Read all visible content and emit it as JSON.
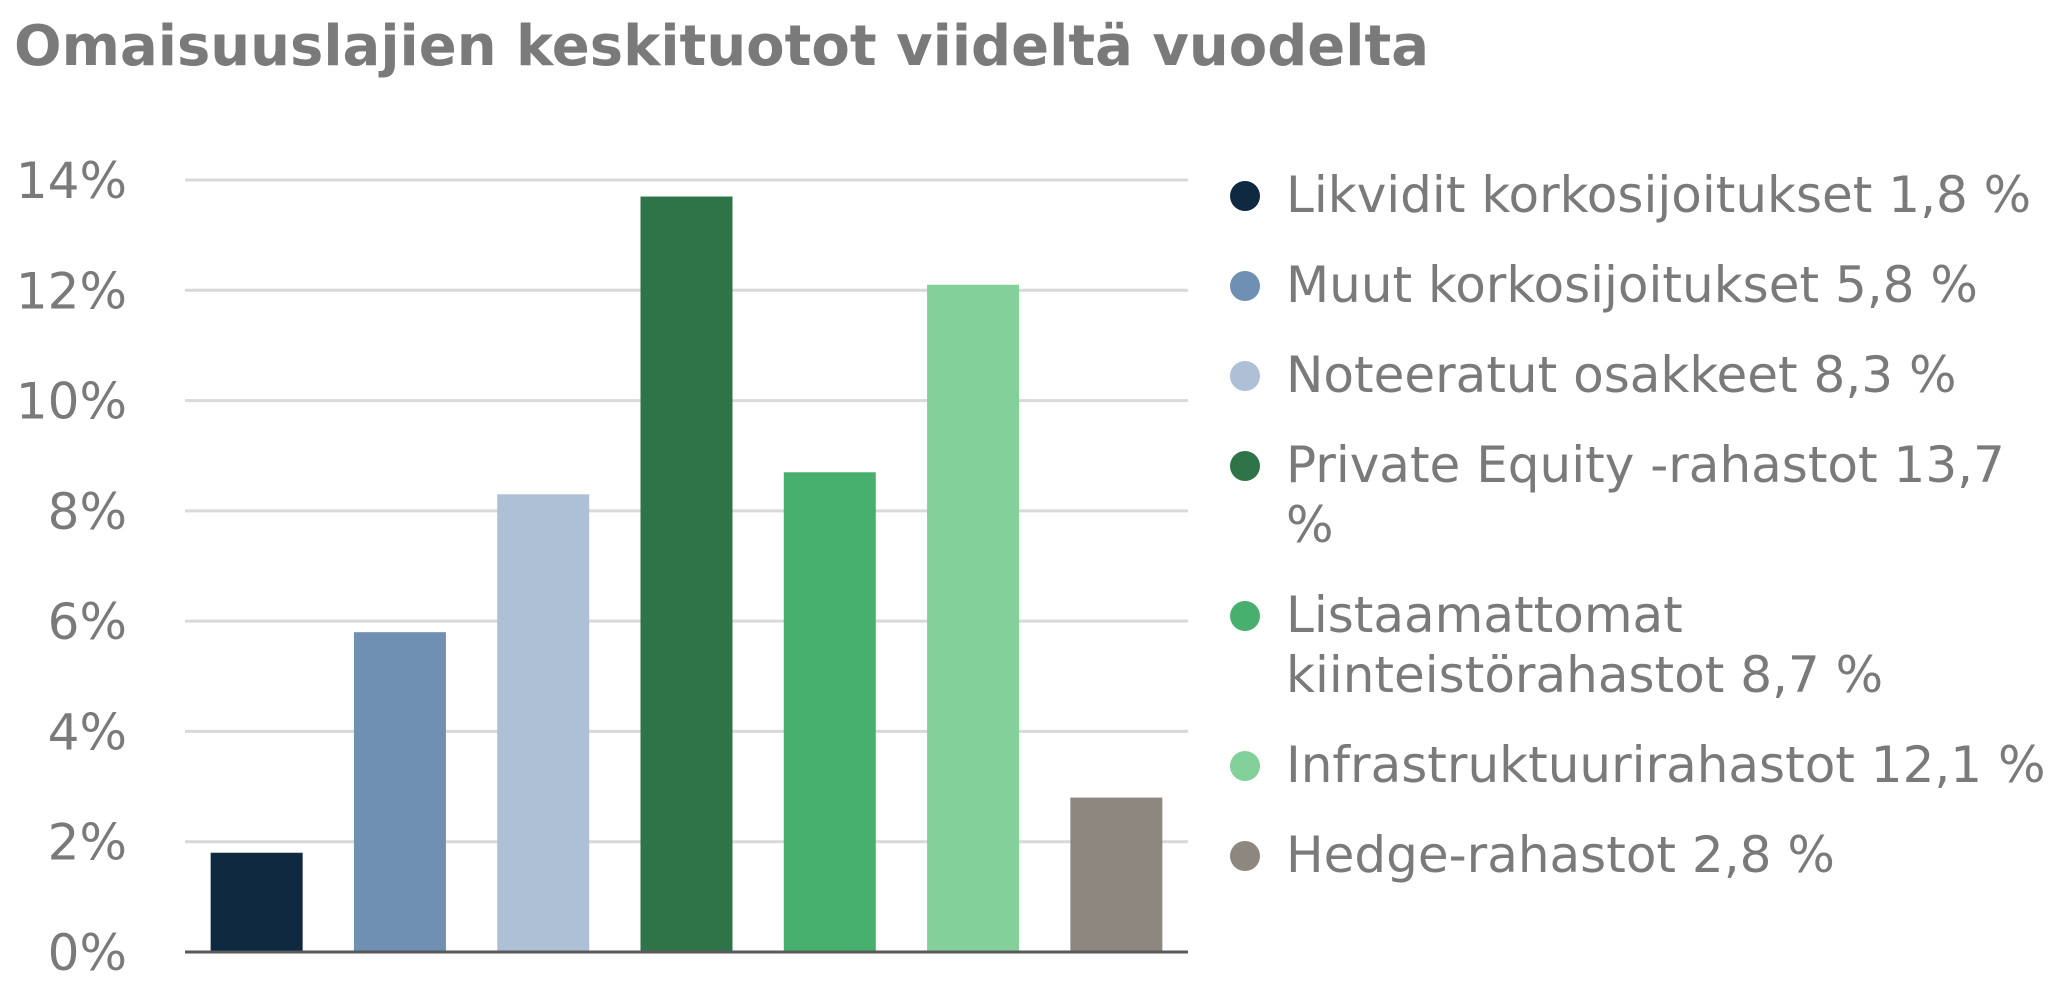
{
  "chart_data": {
    "type": "bar",
    "title": "Omaisuuslajien keskituotot viideltä vuodelta",
    "xlabel": "",
    "ylabel": "",
    "ylim": [
      0,
      14
    ],
    "yticks": [
      "0%",
      "2%",
      "4%",
      "6%",
      "8%",
      "10%",
      "12%",
      "14%"
    ],
    "grid": true,
    "legend_position": "right",
    "categories": [
      "Likvidit korkosijoitukset",
      "Muut korkosijoitukset",
      "Noteeratut osakkeet",
      "Private Equity -rahastot",
      "Listaamattomat kiinteistörahastot",
      "Infrastruktuurirahastot",
      "Hedge-rahastot"
    ],
    "values": [
      1.8,
      5.8,
      8.3,
      13.7,
      8.7,
      12.1,
      2.8
    ],
    "colors": [
      "#0f2a40",
      "#6f8fb3",
      "#adc0d6",
      "#2f7448",
      "#47b06f",
      "#84d09b",
      "#8e877f"
    ],
    "legend": [
      "Likvidit korkosijoitukset 1,8 %",
      "Muut korkosijoitukset 5,8 %",
      "Noteeratut osakkeet 8,3 %",
      "Private Equity -rahastot 13,7 %",
      "Listaamattomat kiinteistörahastot 8,7 %",
      "Infrastruktuurirahastot 12,1 %",
      "Hedge-rahastot 2,8 %"
    ]
  }
}
